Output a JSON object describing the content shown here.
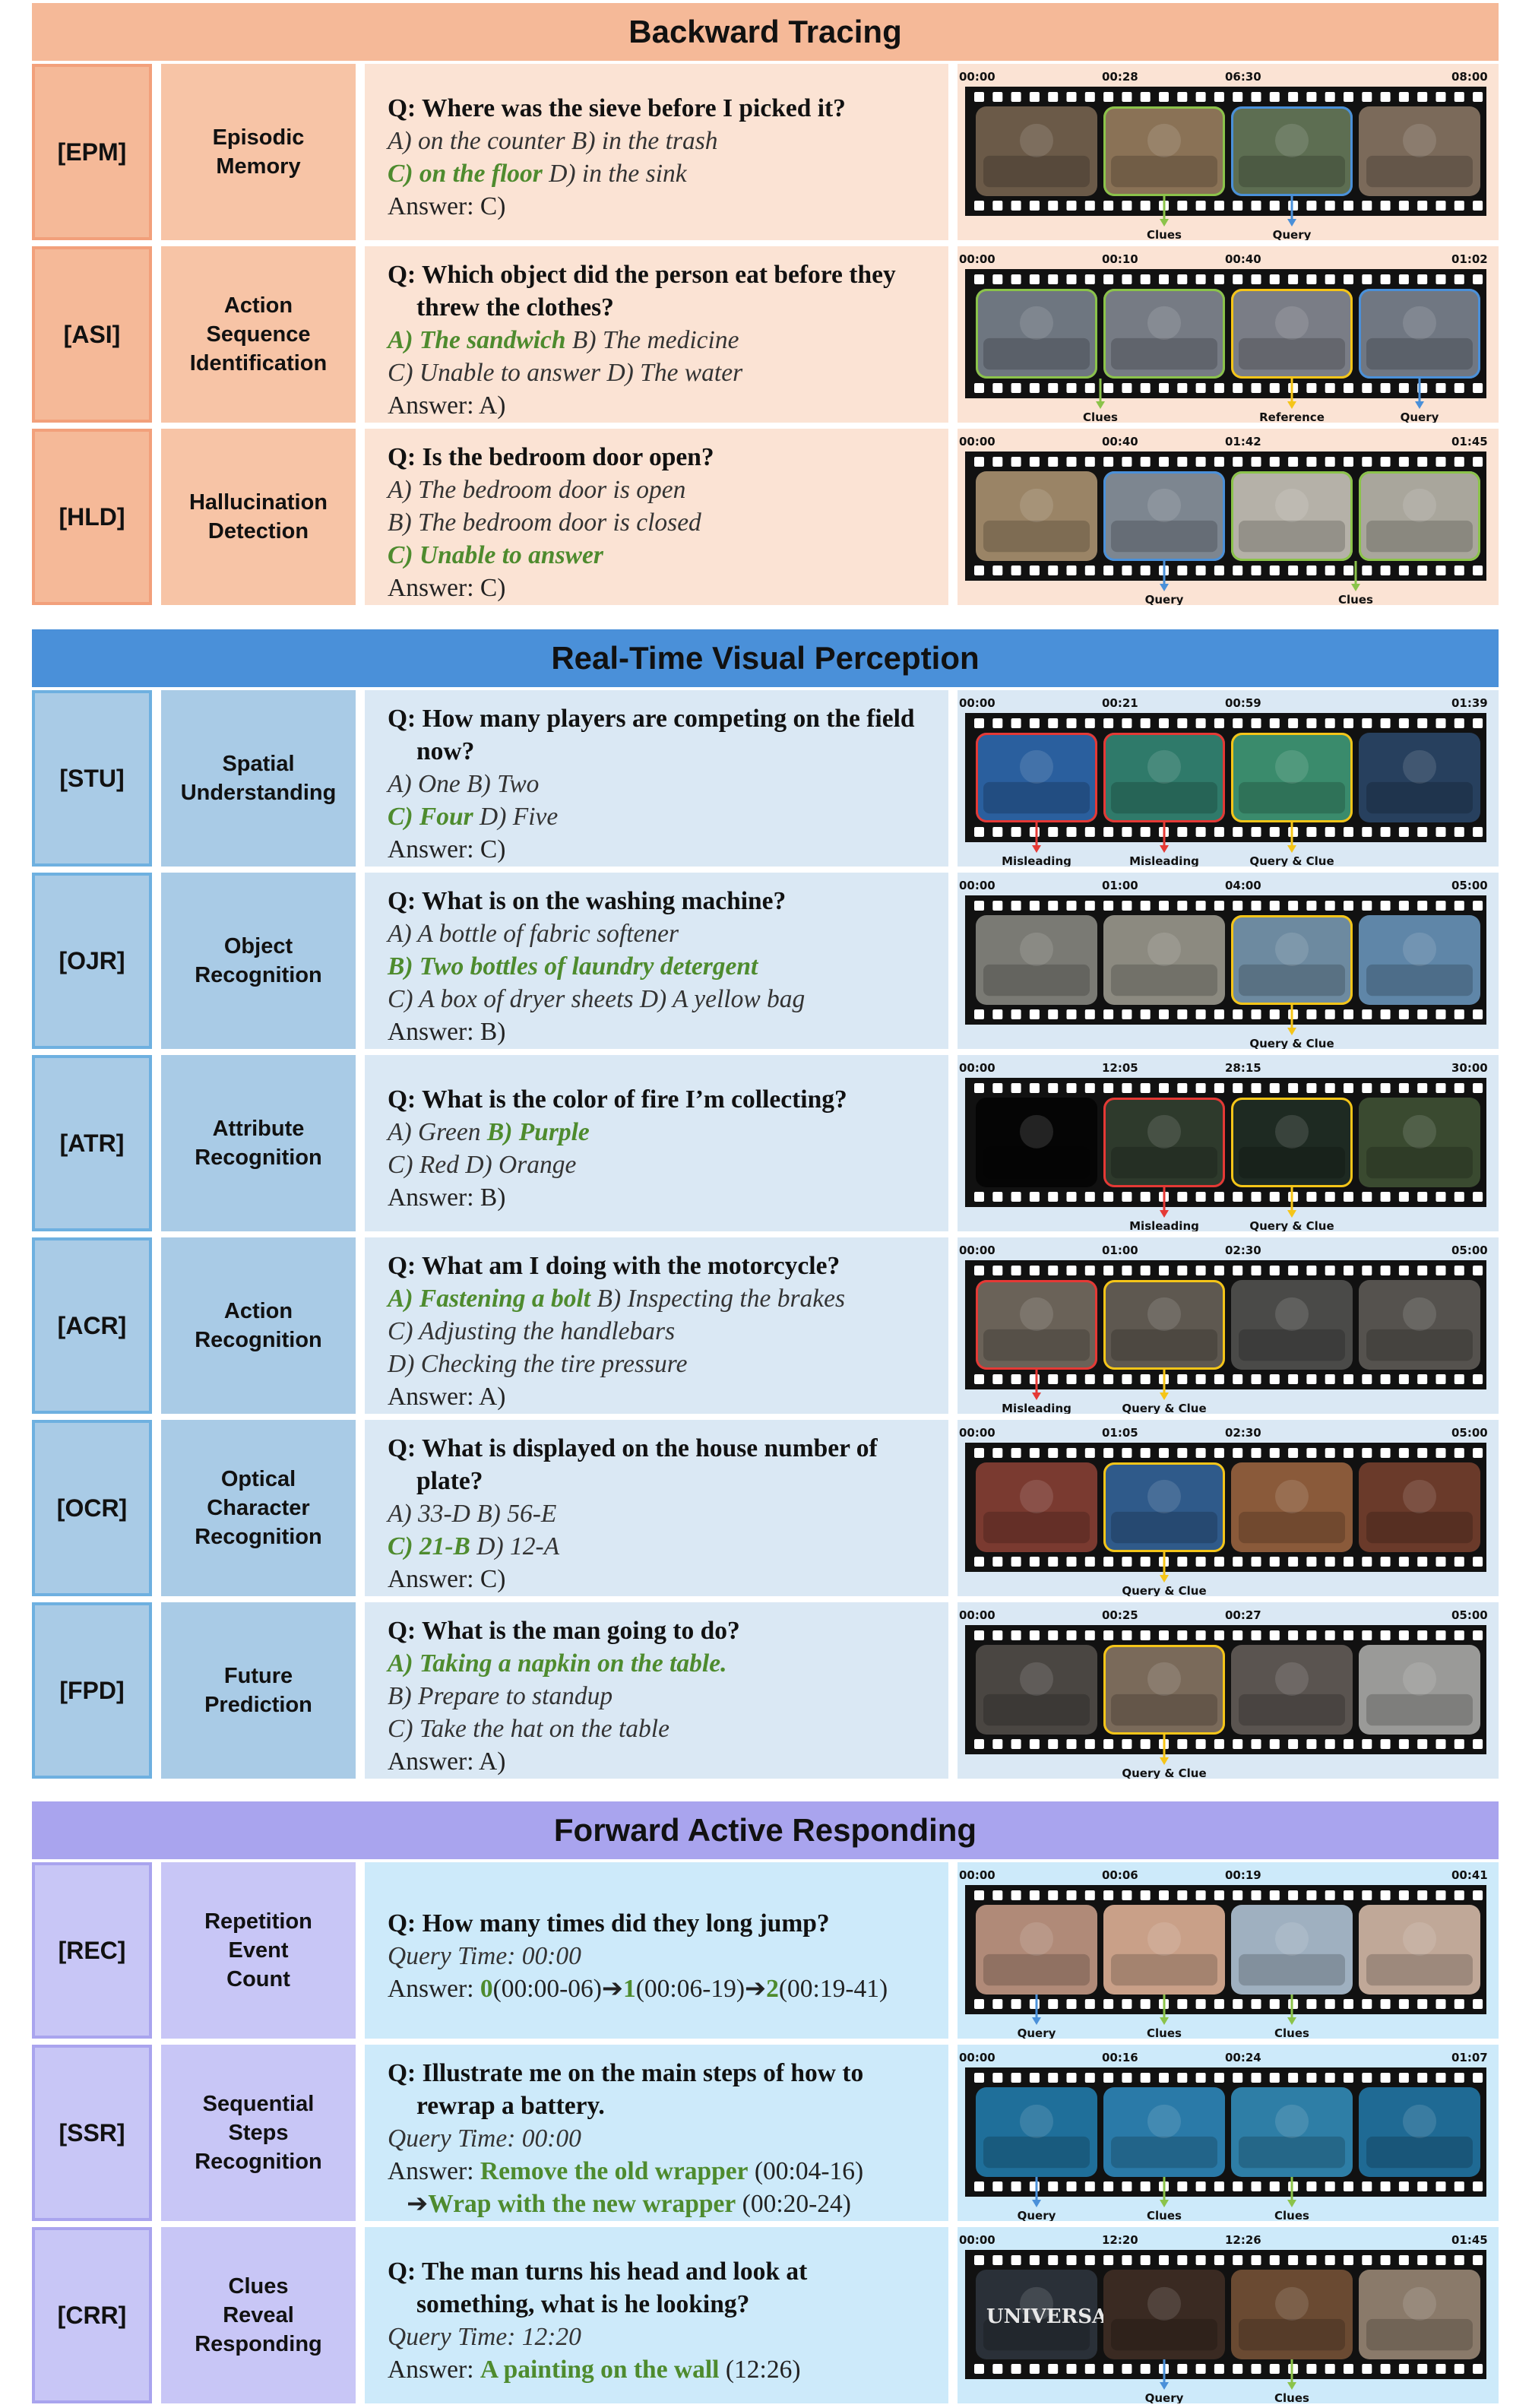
{
  "colors": {
    "backward_header": "#f5b998",
    "realtime_header": "#4a90d9",
    "forward_header": "#a9a4ee",
    "answer_green": "#4e8b2e",
    "clue_marker": "#8bc34a",
    "query_marker": "#4a90d9",
    "misleading_marker": "#e53935",
    "reference_marker": "#f5c518"
  },
  "sections": [
    {
      "title": "Backward Tracing",
      "rows": [
        {
          "code": "[EPM]",
          "name": "Episodic\nMemory",
          "question": "Q: Where was the sieve before I picked it?",
          "lines": [
            [
              {
                "t": "A) on the counter B) in the trash",
                "g": false
              }
            ],
            [
              {
                "t": "C) on the floor",
                "g": true
              },
              {
                "t": " D) in the sink",
                "g": false
              }
            ]
          ],
          "answer": "Answer: C)",
          "timestamps": [
            "00:00",
            "00:28",
            "06:30",
            "08:00"
          ],
          "frame_colors": [
            "#6b5a48",
            "#8a7256",
            "#5d6e52",
            "#7b6a5a"
          ],
          "borders": [
            "none",
            "green",
            "blue",
            "none"
          ],
          "markers": [
            {
              "frame": 1,
              "label": "Clues",
              "color": "green"
            },
            {
              "frame": 2,
              "label": "Query",
              "color": "blue"
            }
          ]
        },
        {
          "code": "[ASI]",
          "name": "Action\nSequence\nIdentification",
          "question": "Q: Which object did the person eat before they threw the clothes?",
          "lines": [
            [
              {
                "t": "A) The sandwich",
                "g": true
              },
              {
                "t": " B) The medicine",
                "g": false
              }
            ],
            [
              {
                "t": "C) Unable to answer D) The water",
                "g": false
              }
            ]
          ],
          "answer": "Answer: A)",
          "timestamps": [
            "00:00",
            "00:10",
            "00:40",
            "01:02"
          ],
          "frame_colors": [
            "#6e7680",
            "#767b84",
            "#7a7d86",
            "#707782"
          ],
          "borders": [
            "green",
            "green",
            "yellow",
            "blue"
          ],
          "markers": [
            {
              "frame": 0.5,
              "label": "Clues",
              "color": "green"
            },
            {
              "frame": 2,
              "label": "Reference",
              "color": "yellow"
            },
            {
              "frame": 3,
              "label": "Query",
              "color": "blue"
            }
          ]
        },
        {
          "code": "[HLD]",
          "name": "Hallucination\nDetection",
          "question": "Q: Is the bedroom door open?",
          "lines": [
            [
              {
                "t": "A) The bedroom door is open",
                "g": false
              }
            ],
            [
              {
                "t": "B) The bedroom door is closed",
                "g": false
              }
            ],
            [
              {
                "t": "C) Unable to answer",
                "g": true
              }
            ]
          ],
          "answer": "Answer: C)",
          "timestamps": [
            "00:00",
            "00:40",
            "01:42",
            "01:45"
          ],
          "frame_colors": [
            "#9a8466",
            "#7d8690",
            "#b5b1a8",
            "#a9a69c"
          ],
          "borders": [
            "none",
            "blue",
            "green",
            "green"
          ],
          "markers": [
            {
              "frame": 1,
              "label": "Query",
              "color": "blue"
            },
            {
              "frame": 2.5,
              "label": "Clues",
              "color": "green"
            }
          ]
        }
      ]
    },
    {
      "title": "Real-Time Visual Perception",
      "rows": [
        {
          "code": "[STU]",
          "name": "Spatial\nUnderstanding",
          "question": "Q: How many players are competing on the field now?",
          "lines": [
            [
              {
                "t": "A) One B) Two",
                "g": false
              }
            ],
            [
              {
                "t": "C) Four",
                "g": true
              },
              {
                "t": " D) Five",
                "g": false
              }
            ]
          ],
          "answer": "Answer: C)",
          "timestamps": [
            "00:00",
            "00:21",
            "00:59",
            "01:39"
          ],
          "frame_colors": [
            "#2a5f9e",
            "#2f7a6a",
            "#3a8b6c",
            "#27405e"
          ],
          "borders": [
            "red",
            "red",
            "yellow",
            "none"
          ],
          "markers": [
            {
              "frame": 0,
              "label": "Misleading",
              "color": "red"
            },
            {
              "frame": 1,
              "label": "Misleading",
              "color": "red"
            },
            {
              "frame": 2,
              "label": "Query & Clue",
              "color": "yellow"
            }
          ]
        },
        {
          "code": "[OJR]",
          "name": "Object\nRecognition",
          "question": "Q: What is on the washing machine?",
          "lines": [
            [
              {
                "t": "A) A bottle of fabric softener",
                "g": false
              }
            ],
            [
              {
                "t": "B) Two bottles of laundry detergent",
                "g": true
              }
            ],
            [
              {
                "t": "C) A box of dryer sheets D) A yellow bag",
                "g": false
              }
            ]
          ],
          "answer": "Answer: B)",
          "timestamps": [
            "00:00",
            "01:00",
            "04:00",
            "05:00"
          ],
          "frame_colors": [
            "#7a7a74",
            "#8c8a80",
            "#6d8aa0",
            "#5f86a8"
          ],
          "borders": [
            "none",
            "none",
            "yellow",
            "none"
          ],
          "markers": [
            {
              "frame": 2,
              "label": "Query & Clue",
              "color": "yellow"
            }
          ]
        },
        {
          "code": "[ATR]",
          "name": "Attribute\nRecognition",
          "question": "Q: What is the color of fire I’m collecting?",
          "lines": [
            [
              {
                "t": "A) Green ",
                "g": false
              },
              {
                "t": "B) Purple",
                "g": true
              }
            ],
            [
              {
                "t": "C) Red D) Orange",
                "g": false
              }
            ]
          ],
          "answer": "Answer: B)",
          "timestamps": [
            "00:00",
            "12:05",
            "28:15",
            "30:00"
          ],
          "frame_colors": [
            "#050505",
            "#2e3a2c",
            "#1e2a22",
            "#3a4a30"
          ],
          "borders": [
            "none",
            "red",
            "yellow",
            "none"
          ],
          "markers": [
            {
              "frame": 1,
              "label": "Misleading",
              "color": "red"
            },
            {
              "frame": 2,
              "label": "Query & Clue",
              "color": "yellow"
            }
          ]
        },
        {
          "code": "[ACR]",
          "name": "Action\nRecognition",
          "question": "Q: What am I doing with the motorcycle?",
          "lines": [
            [
              {
                "t": "A) Fastening a bolt",
                "g": true
              },
              {
                "t": " B) Inspecting the brakes",
                "g": false
              }
            ],
            [
              {
                "t": "C) Adjusting the handlebars",
                "g": false
              }
            ],
            [
              {
                "t": "D) Checking the tire pressure",
                "g": false
              }
            ]
          ],
          "answer": "Answer: A)",
          "timestamps": [
            "00:00",
            "01:00",
            "02:30",
            "05:00"
          ],
          "frame_colors": [
            "#6a6258",
            "#5e5850",
            "#4a4a48",
            "#55524e"
          ],
          "borders": [
            "red",
            "yellow",
            "none",
            "none"
          ],
          "markers": [
            {
              "frame": 0,
              "label": "Misleading",
              "color": "red"
            },
            {
              "frame": 1,
              "label": "Query & Clue",
              "color": "yellow"
            }
          ]
        },
        {
          "code": "[OCR]",
          "name": "Optical\nCharacter\nRecognition",
          "question": "Q: What is displayed on the house number of plate?",
          "lines": [
            [
              {
                "t": "A) 33-D B) 56-E",
                "g": false
              }
            ],
            [
              {
                "t": "C) 21-B",
                "g": true
              },
              {
                "t": " D) 12-A",
                "g": false
              }
            ]
          ],
          "answer": "Answer: C)",
          "timestamps": [
            "00:00",
            "01:05",
            "02:30",
            "05:00"
          ],
          "frame_colors": [
            "#7a3a30",
            "#2f5a8a",
            "#8a5a3a",
            "#6a3a2a"
          ],
          "borders": [
            "none",
            "yellow",
            "none",
            "none"
          ],
          "markers": [
            {
              "frame": 1,
              "label": "Query & Clue",
              "color": "yellow"
            }
          ]
        },
        {
          "code": "[FPD]",
          "name": "Future\nPrediction",
          "question": "Q: What is the man going to do?",
          "lines": [
            [
              {
                "t": "A) Taking a napkin on the table.",
                "g": true
              }
            ],
            [
              {
                "t": "B) Prepare to standup",
                "g": false
              }
            ],
            [
              {
                "t": "C) Take the hat on the table",
                "g": false
              }
            ]
          ],
          "answer": "Answer: A)",
          "timestamps": [
            "00:00",
            "00:25",
            "00:27",
            "05:00"
          ],
          "frame_colors": [
            "#4a4642",
            "#7a6a5a",
            "#5a5450",
            "#9a9a98"
          ],
          "borders": [
            "none",
            "yellow",
            "none",
            "none"
          ],
          "markers": [
            {
              "frame": 1,
              "label": "Query & Clue",
              "color": "yellow"
            }
          ]
        }
      ]
    },
    {
      "title": "Forward Active Responding",
      "rows": [
        {
          "code": "[REC]",
          "name": "Repetition\nEvent\nCount",
          "question": "Q: How many times did they long jump?",
          "query_time": "Query Time: 00:00",
          "answer_parts": [
            {
              "t": "Answer: ",
              "g": false
            },
            {
              "t": "0",
              "g": true
            },
            {
              "t": "(00:00-06)",
              "g": false
            },
            {
              "t": "➔",
              "g": false
            },
            {
              "t": "1",
              "g": true
            },
            {
              "t": "(00:06-19)",
              "g": false
            },
            {
              "t": "➔",
              "g": false
            },
            {
              "t": "2",
              "g": true
            },
            {
              "t": "(00:19-41)",
              "g": false
            }
          ],
          "timestamps": [
            "00:00",
            "00:06",
            "00:19",
            "00:41"
          ],
          "frame_colors": [
            "#b08a78",
            "#c9a088",
            "#9fb0c0",
            "#c0a898"
          ],
          "borders": [
            "none",
            "none",
            "none",
            "none"
          ],
          "markers": [
            {
              "frame": 0,
              "label": "Query",
              "color": "blue"
            },
            {
              "frame": 1,
              "label": "Clues",
              "color": "green"
            },
            {
              "frame": 2,
              "label": "Clues",
              "color": "green"
            }
          ]
        },
        {
          "code": "[SSR]",
          "name": "Sequential\nSteps\nRecognition",
          "question": "Q: Illustrate me on the main steps of how to rewrap a battery.",
          "query_time": "Query Time: 00:00",
          "answer_lines": [
            [
              {
                "t": "Answer: ",
                "g": false
              },
              {
                "t": "Remove the old wrapper",
                "g": true
              },
              {
                "t": " (00:04-16)",
                "g": false
              }
            ],
            [
              {
                "t": "   ➔",
                "g": false
              },
              {
                "t": "Wrap with the new wrapper",
                "g": true
              },
              {
                "t": " (00:20-24)",
                "g": false
              }
            ]
          ],
          "timestamps": [
            "00:00",
            "00:16",
            "00:24",
            "01:07"
          ],
          "frame_colors": [
            "#1f6f9a",
            "#2a7aa8",
            "#2e7ea6",
            "#1f6a94"
          ],
          "borders": [
            "none",
            "none",
            "none",
            "none"
          ],
          "markers": [
            {
              "frame": 0,
              "label": "Query",
              "color": "blue"
            },
            {
              "frame": 1,
              "label": "Clues",
              "color": "green"
            },
            {
              "frame": 2,
              "label": "Clues",
              "color": "green"
            }
          ]
        },
        {
          "code": "[CRR]",
          "name": "Clues\nReveal\nResponding",
          "question": "Q: The man turns his head and look at something, what is he looking?",
          "query_time": "Query Time: 12:20",
          "answer_parts": [
            {
              "t": "Answer: ",
              "g": false
            },
            {
              "t": "A painting on the wall",
              "g": true
            },
            {
              "t": " (12:26)",
              "g": false
            }
          ],
          "frame_text": "UNIVERSA",
          "timestamps": [
            "00:00",
            "12:20",
            "12:26",
            "01:45"
          ],
          "frame_colors": [
            "#2a3038",
            "#3a2a22",
            "#6a4a32",
            "#8a7a6a"
          ],
          "borders": [
            "none",
            "none",
            "none",
            "none"
          ],
          "markers": [
            {
              "frame": 1,
              "label": "Query",
              "color": "blue"
            },
            {
              "frame": 2,
              "label": "Clues",
              "color": "green"
            }
          ]
        }
      ]
    }
  ]
}
